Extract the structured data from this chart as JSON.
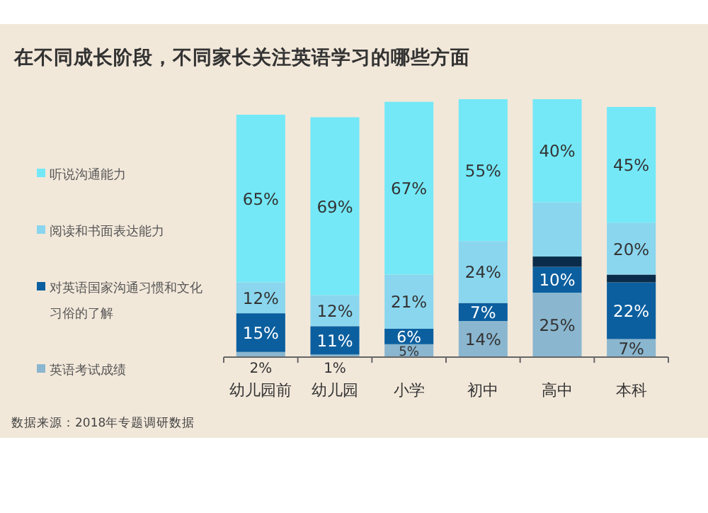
{
  "chart_data": {
    "type": "bar",
    "stacked": true,
    "title": "在不同成长阶段，不同家长关注英语学习的哪些方面",
    "annotations": [
      "数据来源：2018年专题调研数据"
    ],
    "categories": [
      "幼儿园前",
      "幼儿园",
      "小学",
      "初中",
      "高中",
      "本科"
    ],
    "legend": "left",
    "grid": false,
    "ylim": [
      0,
      100
    ],
    "tick_labels": "x",
    "series": [
      {
        "name": "英语考试成绩",
        "color": "#8ab6cf",
        "values": [
          2,
          1,
          5,
          14,
          25,
          7
        ],
        "value_labels": [
          "2%",
          "1%",
          "5%",
          "14%",
          "25%",
          "7%"
        ]
      },
      {
        "name": "对英语国家沟通习惯和文化习俗的了解",
        "color": "#0b5f9f",
        "values": [
          15,
          11,
          6,
          7,
          10,
          22
        ],
        "value_labels": [
          "15%",
          "11%",
          "6%",
          "7%",
          "10%",
          "22%"
        ]
      },
      {
        "color": "#0a2c4a",
        "values": [
          0,
          0,
          0,
          0,
          4,
          3
        ],
        "value_labels": [
          null,
          null,
          null,
          null,
          null,
          null
        ]
      },
      {
        "name": "阅读和书面表达能力",
        "color": "#8ad6ef",
        "values": [
          12,
          12,
          21,
          24,
          21,
          20
        ],
        "value_labels": [
          "12%",
          "12%",
          "21%",
          "24%",
          null,
          "20%"
        ]
      },
      {
        "name": "听说沟通能力",
        "color": "#74e8f7",
        "values": [
          65,
          69,
          67,
          55,
          40,
          45
        ],
        "value_labels": [
          "65%",
          "69%",
          "67%",
          "55%",
          "40%",
          "45%"
        ]
      }
    ]
  }
}
